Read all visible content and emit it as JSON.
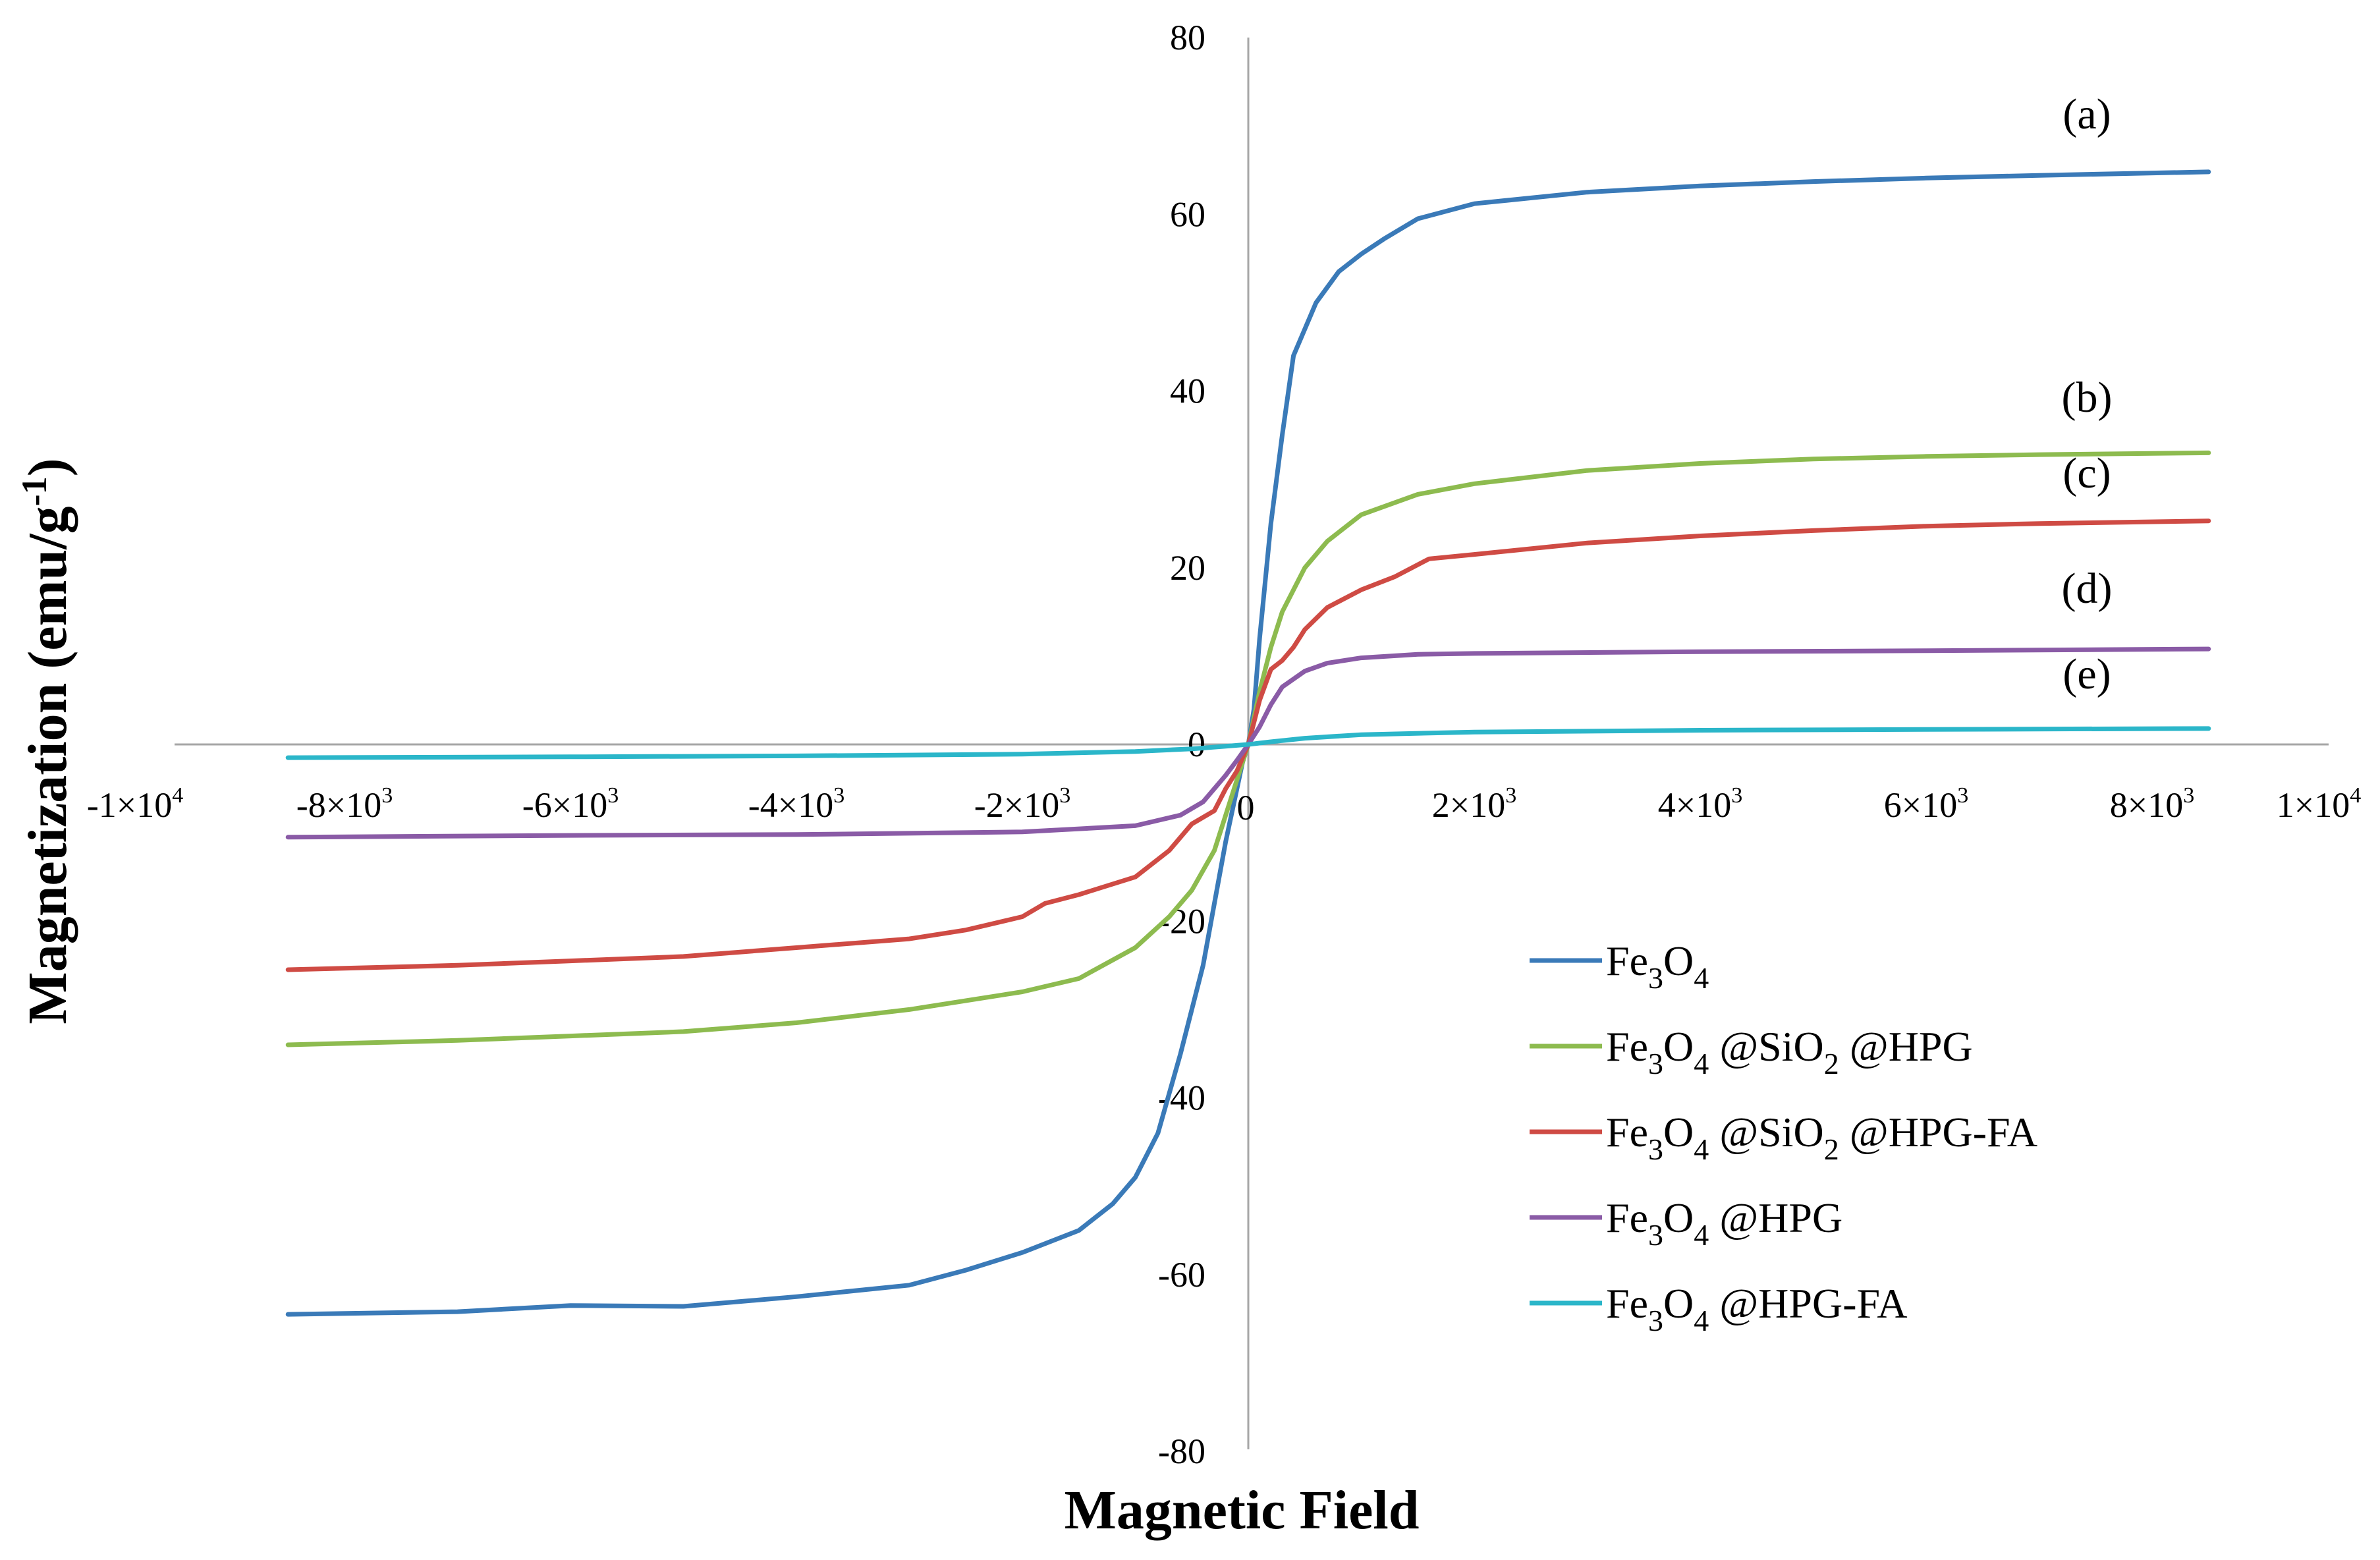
{
  "chart_data": {
    "type": "line",
    "title": "",
    "xlabel": "Magnetic Field",
    "ylabel": "Magnetization (emu/g",
    "ylabel_sup": "-1",
    "ylabel_end": ")",
    "xlim": [
      -10000,
      10000
    ],
    "ylim": [
      -80,
      80
    ],
    "y_ticks": [
      {
        "value": 80,
        "label": "80"
      },
      {
        "value": 60,
        "label": "60"
      },
      {
        "value": 40,
        "label": "40"
      },
      {
        "value": 20,
        "label": "20"
      },
      {
        "value": 0,
        "label": "0"
      },
      {
        "value": -20,
        "label": "-20"
      },
      {
        "value": -40,
        "label": "-40"
      },
      {
        "value": -60,
        "label": "-60"
      },
      {
        "value": -80,
        "label": "-80"
      }
    ],
    "x_ticks": [
      {
        "value": -10000,
        "mant": "-1×10",
        "exp": "4"
      },
      {
        "value": -8000,
        "mant": "-8×10",
        "exp": "3"
      },
      {
        "value": -6000,
        "mant": "-6×10",
        "exp": "3"
      },
      {
        "value": -4000,
        "mant": "-4×10",
        "exp": "3"
      },
      {
        "value": -2000,
        "mant": "-2×10",
        "exp": "3"
      },
      {
        "value": 0,
        "mant": "0",
        "exp": ""
      },
      {
        "value": 2000,
        "mant": "2×10",
        "exp": "3"
      },
      {
        "value": 4000,
        "mant": "4×10",
        "exp": "3"
      },
      {
        "value": 6000,
        "mant": "6×10",
        "exp": "3"
      },
      {
        "value": 8000,
        "mant": "8×10",
        "exp": "3"
      },
      {
        "value": 10000,
        "mant": "1×10",
        "exp": "4"
      }
    ],
    "series": [
      {
        "name": "Fe3O4",
        "label": "(a)",
        "color": "#3a7ab8",
        "legend": [
          {
            "t": "Fe"
          },
          {
            "t": "3",
            "sub": true
          },
          {
            "t": "O"
          },
          {
            "t": "4",
            "sub": true
          }
        ],
        "x": [
          -8500,
          -7000,
          -6000,
          -5000,
          -4000,
          -3000,
          -2500,
          -2000,
          -1500,
          -1200,
          -1000,
          -800,
          -600,
          -400,
          -300,
          -200,
          -100,
          -50,
          0,
          50,
          100,
          200,
          300,
          400,
          600,
          800,
          1000,
          1200,
          1500,
          2000,
          3000,
          4000,
          5000,
          6000,
          7000,
          8500
        ],
        "y": [
          -64.5,
          -64.2,
          -63.5,
          -63.6,
          -62.5,
          -61.2,
          -59.5,
          -57.5,
          -55,
          -52,
          -49,
          -44,
          -35,
          -25,
          -18,
          -11,
          -5,
          -2,
          0,
          4,
          12,
          25,
          35,
          44,
          50,
          53.5,
          55.5,
          57.2,
          59.5,
          61.2,
          62.5,
          63.2,
          63.7,
          64.1,
          64.4,
          64.8
        ]
      },
      {
        "name": "Fe3O4@SiO2@HPG",
        "label": "(b)",
        "color": "#8dbb4f",
        "legend": [
          {
            "t": "Fe"
          },
          {
            "t": "3",
            "sub": true
          },
          {
            "t": "O"
          },
          {
            "t": "4",
            "sub": true
          },
          {
            "t": " @SiO"
          },
          {
            "t": "2",
            "sub": true
          },
          {
            "t": " @HPG"
          }
        ],
        "x": [
          -8500,
          -7000,
          -6000,
          -5000,
          -4000,
          -3000,
          -2000,
          -1500,
          -1000,
          -700,
          -500,
          -300,
          -200,
          -100,
          0,
          100,
          200,
          300,
          500,
          700,
          1000,
          1500,
          2000,
          3000,
          4000,
          5000,
          6000,
          7000,
          8500
        ],
        "y": [
          -34,
          -33.5,
          -33,
          -32.5,
          -31.5,
          -30,
          -28,
          -26.5,
          -23,
          -19.5,
          -16.5,
          -12,
          -8,
          -4,
          0,
          6,
          11,
          15,
          20,
          23,
          26,
          28.3,
          29.5,
          31,
          31.8,
          32.3,
          32.6,
          32.8,
          33
        ]
      },
      {
        "name": "Fe3O4@SiO2@HPG-FA",
        "label": "(c)",
        "color": "#cf4b44",
        "legend": [
          {
            "t": "Fe"
          },
          {
            "t": "3",
            "sub": true
          },
          {
            "t": "O"
          },
          {
            "t": "4",
            "sub": true
          },
          {
            "t": " @SiO"
          },
          {
            "t": "2",
            "sub": true
          },
          {
            "t": " @HPG-FA"
          }
        ],
        "x": [
          -8500,
          -7000,
          -6000,
          -5000,
          -4000,
          -3000,
          -2500,
          -2000,
          -1800,
          -1500,
          -1000,
          -700,
          -500,
          -300,
          -200,
          -100,
          0,
          100,
          200,
          300,
          400,
          500,
          700,
          1000,
          1300,
          1600,
          2000,
          3000,
          4000,
          5000,
          6000,
          7000,
          8500
        ],
        "y": [
          -25.5,
          -25,
          -24.5,
          -24,
          -23,
          -22,
          -21,
          -19.5,
          -18,
          -17,
          -15,
          -12,
          -9,
          -7.5,
          -5,
          -3,
          0,
          5,
          8.5,
          9.5,
          11,
          13,
          15.5,
          17.5,
          19,
          21,
          21.5,
          22.8,
          23.6,
          24.2,
          24.7,
          25,
          25.3
        ]
      },
      {
        "name": "Fe3O4@HPG",
        "label": "(d)",
        "color": "#8a5ba6",
        "legend": [
          {
            "t": "Fe"
          },
          {
            "t": "3",
            "sub": true
          },
          {
            "t": "O"
          },
          {
            "t": "4",
            "sub": true
          },
          {
            "t": " @HPG"
          }
        ],
        "x": [
          -8500,
          -6000,
          -4000,
          -2000,
          -1000,
          -600,
          -400,
          -200,
          -100,
          0,
          100,
          200,
          300,
          500,
          700,
          1000,
          1500,
          2000,
          4000,
          6000,
          8500
        ],
        "y": [
          -10.5,
          -10.3,
          -10.2,
          -9.9,
          -9.2,
          -8,
          -6.5,
          -3.5,
          -1.8,
          0,
          2,
          4.5,
          6.5,
          8.3,
          9.2,
          9.8,
          10.2,
          10.3,
          10.5,
          10.6,
          10.8
        ]
      },
      {
        "name": "Fe3O4@HPG-FA",
        "label": "(e)",
        "color": "#2bb6c9",
        "legend": [
          {
            "t": "Fe"
          },
          {
            "t": "3",
            "sub": true
          },
          {
            "t": "O"
          },
          {
            "t": "4",
            "sub": true
          },
          {
            "t": " @HPG-FA"
          }
        ],
        "x": [
          -8500,
          -6000,
          -4000,
          -2000,
          -1000,
          -500,
          -200,
          0,
          200,
          500,
          1000,
          2000,
          4000,
          6000,
          8500
        ],
        "y": [
          -1.5,
          -1.4,
          -1.3,
          -1.1,
          -0.8,
          -0.5,
          -0.2,
          0,
          0.3,
          0.7,
          1.1,
          1.4,
          1.6,
          1.7,
          1.8
        ]
      }
    ],
    "legend_position": "bottom-right"
  }
}
